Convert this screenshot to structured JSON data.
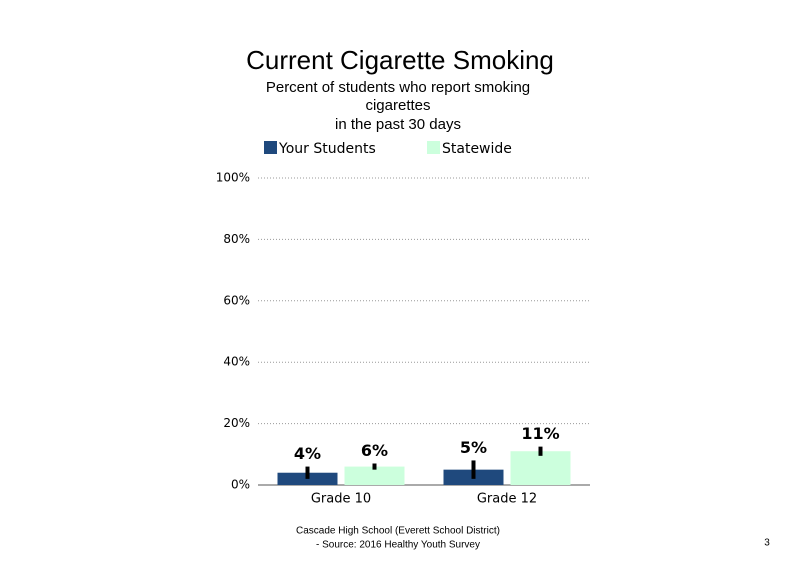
{
  "chart_data": {
    "type": "bar",
    "title": "Current Cigarette Smoking",
    "subtitle": [
      "Percent of students who report smoking",
      "cigarettes",
      "in the past 30 days"
    ],
    "categories": [
      "Grade 10",
      "Grade 12"
    ],
    "series": [
      {
        "name": "Your Students",
        "color": "#1f497d",
        "values": [
          4,
          5
        ],
        "value_labels": [
          "4%",
          "5%"
        ],
        "errors": [
          2,
          3
        ]
      },
      {
        "name": "Statewide",
        "color": "#ccffdd",
        "values": [
          6,
          11
        ],
        "value_labels": [
          "6%",
          "11%"
        ],
        "errors": [
          1,
          1.5
        ]
      }
    ],
    "ylim": [
      0,
      100
    ],
    "yticks": [
      {
        "value": 0,
        "label": "0%"
      },
      {
        "value": 20,
        "label": "20%"
      },
      {
        "value": 40,
        "label": "40%"
      },
      {
        "value": 60,
        "label": "60%"
      },
      {
        "value": 80,
        "label": "80%"
      },
      {
        "value": 100,
        "label": "100%"
      }
    ],
    "grid": true,
    "legend": "top",
    "footer": [
      "Cascade High School (Everett School District)",
      "- Source: 2016 Healthy Youth Survey"
    ],
    "page_number": "3"
  }
}
